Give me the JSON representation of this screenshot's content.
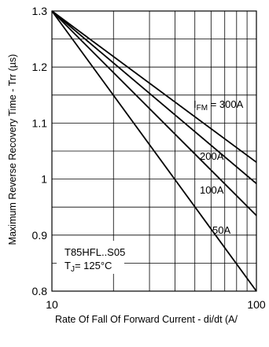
{
  "chart_data": {
    "type": "line",
    "title": "",
    "xlabel": "Rate Of Fall Of Forward Current - di/dt (A/",
    "ylabel": "Maximum Reverse Recovery Time - Trr (µs)",
    "x_scale": "log",
    "xlim": [
      10,
      100
    ],
    "ylim": [
      0.8,
      1.3
    ],
    "x_ticks": [
      "10",
      "100"
    ],
    "y_ticks": [
      "0.8",
      "0.9",
      "1",
      "1.1",
      "1.2",
      "1.3"
    ],
    "grid": true,
    "series": [
      {
        "name": "50A",
        "x": [
          10,
          100
        ],
        "y": [
          1.3,
          0.8
        ]
      },
      {
        "name": "100A",
        "x": [
          10,
          100
        ],
        "y": [
          1.3,
          0.935
        ]
      },
      {
        "name": "200A",
        "x": [
          10,
          100
        ],
        "y": [
          1.3,
          0.992
        ]
      },
      {
        "name": "300A",
        "x": [
          10,
          100
        ],
        "y": [
          1.3,
          1.03
        ]
      }
    ],
    "series_labels": [
      "50A",
      "100A",
      "200A",
      "I_FM = 300A"
    ],
    "annotations": {
      "device": "T85HFL..S05",
      "temp_prefix": "T",
      "temp_sub": "J",
      "temp_suffix": "= 125°C",
      "label_300_prefix": "I",
      "label_300_sub": "FM",
      "label_300_suffix": " = 300A"
    }
  }
}
